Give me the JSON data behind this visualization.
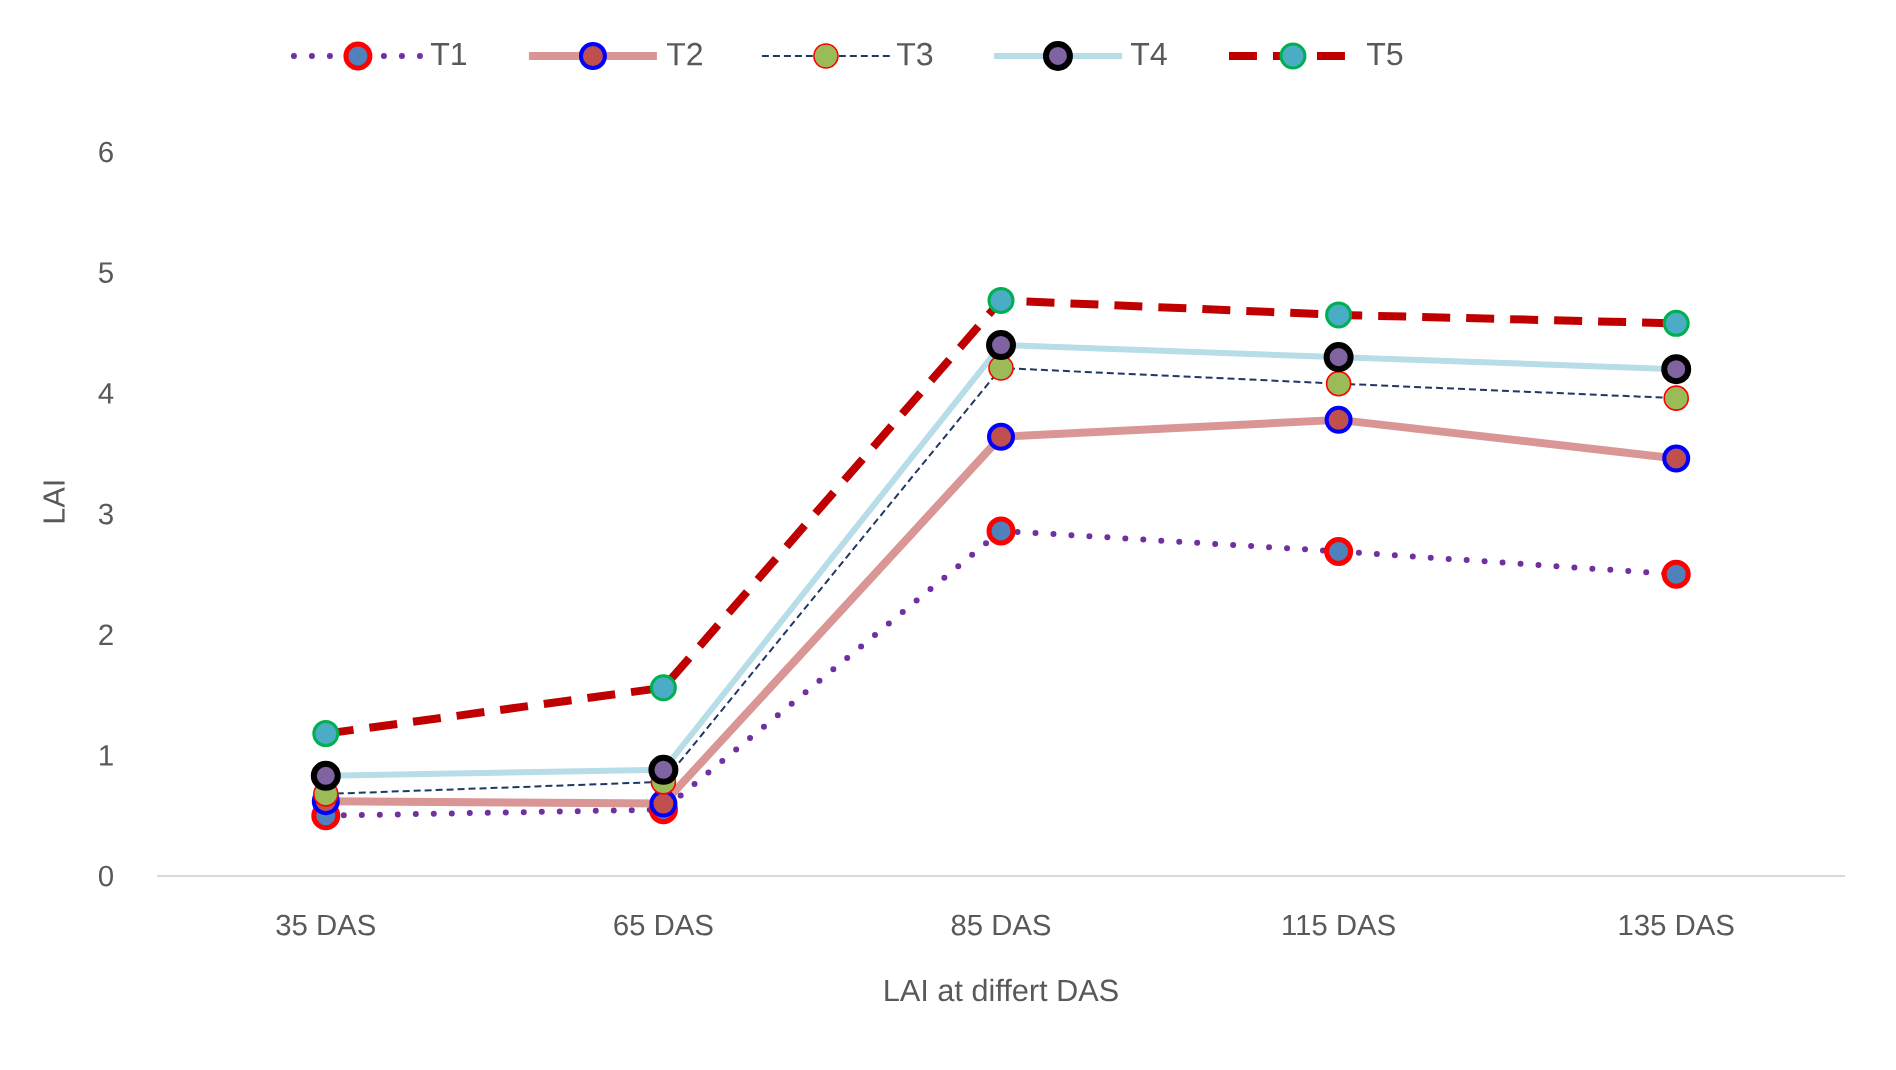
{
  "chart_data": {
    "type": "line",
    "categories": [
      "35 DAS",
      "65 DAS",
      "85 DAS",
      "115  DAS",
      "135 DAS"
    ],
    "xlabel": "LAI at differt DAS",
    "ylabel": "LAI",
    "ylim": [
      0,
      6
    ],
    "yticks": [
      0,
      1,
      2,
      3,
      4,
      5,
      6
    ],
    "legend": "top",
    "marker": "circle",
    "series": [
      {
        "name": "T1",
        "color": "#7030a0",
        "line_style": "dotted",
        "values": [
          0.5,
          0.55,
          2.86,
          2.69,
          2.5
        ]
      },
      {
        "name": "T2",
        "color": "#d99694",
        "line_style": "solid",
        "values": [
          0.62,
          0.6,
          3.64,
          3.78,
          3.46
        ]
      },
      {
        "name": "T3",
        "color": "#1f3864",
        "line_style": "dashed",
        "values": [
          0.68,
          0.78,
          4.21,
          4.08,
          3.96
        ]
      },
      {
        "name": "T4",
        "color": "#b7dde8",
        "line_style": "solid",
        "values": [
          0.83,
          0.88,
          4.4,
          4.3,
          4.2
        ]
      },
      {
        "name": "T5",
        "color": "#c00000",
        "line_style": "dashed",
        "values": [
          1.18,
          1.56,
          4.77,
          4.65,
          4.58
        ]
      }
    ]
  }
}
